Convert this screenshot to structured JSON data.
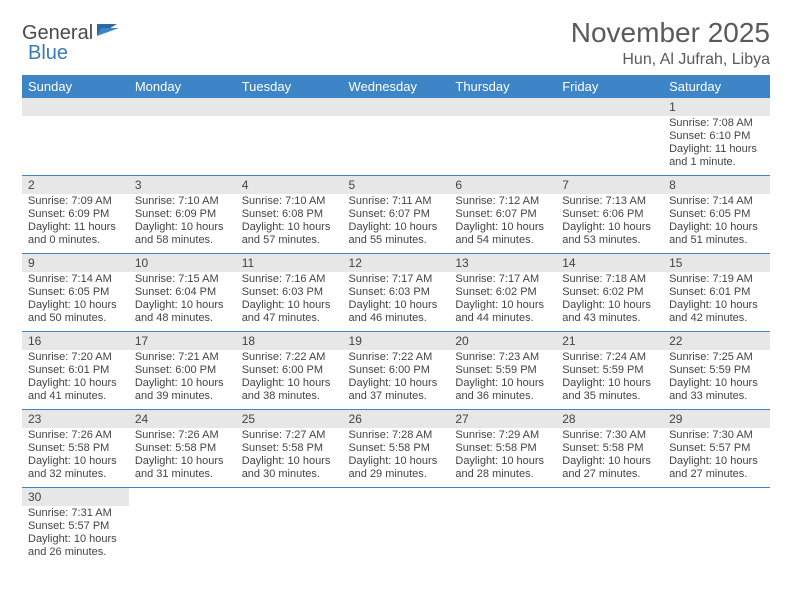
{
  "logo": {
    "part1": "General",
    "part2": "Blue"
  },
  "title": "November 2025",
  "location": "Hun, Al Jufrah, Libya",
  "colors": {
    "header_bg": "#3d85c6",
    "header_text": "#ffffff",
    "daynum_bg": "#e7e7e7",
    "border": "#3d85c6",
    "text": "#444444",
    "logo_gray": "#4a4a4a",
    "logo_blue": "#3a7ab8"
  },
  "day_headers": [
    "Sunday",
    "Monday",
    "Tuesday",
    "Wednesday",
    "Thursday",
    "Friday",
    "Saturday"
  ],
  "weeks": [
    [
      null,
      null,
      null,
      null,
      null,
      null,
      {
        "n": "1",
        "sr": "Sunrise: 7:08 AM",
        "ss": "Sunset: 6:10 PM",
        "dl": "Daylight: 11 hours and 1 minute."
      }
    ],
    [
      {
        "n": "2",
        "sr": "Sunrise: 7:09 AM",
        "ss": "Sunset: 6:09 PM",
        "dl": "Daylight: 11 hours and 0 minutes."
      },
      {
        "n": "3",
        "sr": "Sunrise: 7:10 AM",
        "ss": "Sunset: 6:09 PM",
        "dl": "Daylight: 10 hours and 58 minutes."
      },
      {
        "n": "4",
        "sr": "Sunrise: 7:10 AM",
        "ss": "Sunset: 6:08 PM",
        "dl": "Daylight: 10 hours and 57 minutes."
      },
      {
        "n": "5",
        "sr": "Sunrise: 7:11 AM",
        "ss": "Sunset: 6:07 PM",
        "dl": "Daylight: 10 hours and 55 minutes."
      },
      {
        "n": "6",
        "sr": "Sunrise: 7:12 AM",
        "ss": "Sunset: 6:07 PM",
        "dl": "Daylight: 10 hours and 54 minutes."
      },
      {
        "n": "7",
        "sr": "Sunrise: 7:13 AM",
        "ss": "Sunset: 6:06 PM",
        "dl": "Daylight: 10 hours and 53 minutes."
      },
      {
        "n": "8",
        "sr": "Sunrise: 7:14 AM",
        "ss": "Sunset: 6:05 PM",
        "dl": "Daylight: 10 hours and 51 minutes."
      }
    ],
    [
      {
        "n": "9",
        "sr": "Sunrise: 7:14 AM",
        "ss": "Sunset: 6:05 PM",
        "dl": "Daylight: 10 hours and 50 minutes."
      },
      {
        "n": "10",
        "sr": "Sunrise: 7:15 AM",
        "ss": "Sunset: 6:04 PM",
        "dl": "Daylight: 10 hours and 48 minutes."
      },
      {
        "n": "11",
        "sr": "Sunrise: 7:16 AM",
        "ss": "Sunset: 6:03 PM",
        "dl": "Daylight: 10 hours and 47 minutes."
      },
      {
        "n": "12",
        "sr": "Sunrise: 7:17 AM",
        "ss": "Sunset: 6:03 PM",
        "dl": "Daylight: 10 hours and 46 minutes."
      },
      {
        "n": "13",
        "sr": "Sunrise: 7:17 AM",
        "ss": "Sunset: 6:02 PM",
        "dl": "Daylight: 10 hours and 44 minutes."
      },
      {
        "n": "14",
        "sr": "Sunrise: 7:18 AM",
        "ss": "Sunset: 6:02 PM",
        "dl": "Daylight: 10 hours and 43 minutes."
      },
      {
        "n": "15",
        "sr": "Sunrise: 7:19 AM",
        "ss": "Sunset: 6:01 PM",
        "dl": "Daylight: 10 hours and 42 minutes."
      }
    ],
    [
      {
        "n": "16",
        "sr": "Sunrise: 7:20 AM",
        "ss": "Sunset: 6:01 PM",
        "dl": "Daylight: 10 hours and 41 minutes."
      },
      {
        "n": "17",
        "sr": "Sunrise: 7:21 AM",
        "ss": "Sunset: 6:00 PM",
        "dl": "Daylight: 10 hours and 39 minutes."
      },
      {
        "n": "18",
        "sr": "Sunrise: 7:22 AM",
        "ss": "Sunset: 6:00 PM",
        "dl": "Daylight: 10 hours and 38 minutes."
      },
      {
        "n": "19",
        "sr": "Sunrise: 7:22 AM",
        "ss": "Sunset: 6:00 PM",
        "dl": "Daylight: 10 hours and 37 minutes."
      },
      {
        "n": "20",
        "sr": "Sunrise: 7:23 AM",
        "ss": "Sunset: 5:59 PM",
        "dl": "Daylight: 10 hours and 36 minutes."
      },
      {
        "n": "21",
        "sr": "Sunrise: 7:24 AM",
        "ss": "Sunset: 5:59 PM",
        "dl": "Daylight: 10 hours and 35 minutes."
      },
      {
        "n": "22",
        "sr": "Sunrise: 7:25 AM",
        "ss": "Sunset: 5:59 PM",
        "dl": "Daylight: 10 hours and 33 minutes."
      }
    ],
    [
      {
        "n": "23",
        "sr": "Sunrise: 7:26 AM",
        "ss": "Sunset: 5:58 PM",
        "dl": "Daylight: 10 hours and 32 minutes."
      },
      {
        "n": "24",
        "sr": "Sunrise: 7:26 AM",
        "ss": "Sunset: 5:58 PM",
        "dl": "Daylight: 10 hours and 31 minutes."
      },
      {
        "n": "25",
        "sr": "Sunrise: 7:27 AM",
        "ss": "Sunset: 5:58 PM",
        "dl": "Daylight: 10 hours and 30 minutes."
      },
      {
        "n": "26",
        "sr": "Sunrise: 7:28 AM",
        "ss": "Sunset: 5:58 PM",
        "dl": "Daylight: 10 hours and 29 minutes."
      },
      {
        "n": "27",
        "sr": "Sunrise: 7:29 AM",
        "ss": "Sunset: 5:58 PM",
        "dl": "Daylight: 10 hours and 28 minutes."
      },
      {
        "n": "28",
        "sr": "Sunrise: 7:30 AM",
        "ss": "Sunset: 5:58 PM",
        "dl": "Daylight: 10 hours and 27 minutes."
      },
      {
        "n": "29",
        "sr": "Sunrise: 7:30 AM",
        "ss": "Sunset: 5:57 PM",
        "dl": "Daylight: 10 hours and 27 minutes."
      }
    ],
    [
      {
        "n": "30",
        "sr": "Sunrise: 7:31 AM",
        "ss": "Sunset: 5:57 PM",
        "dl": "Daylight: 10 hours and 26 minutes."
      },
      null,
      null,
      null,
      null,
      null,
      null
    ]
  ]
}
